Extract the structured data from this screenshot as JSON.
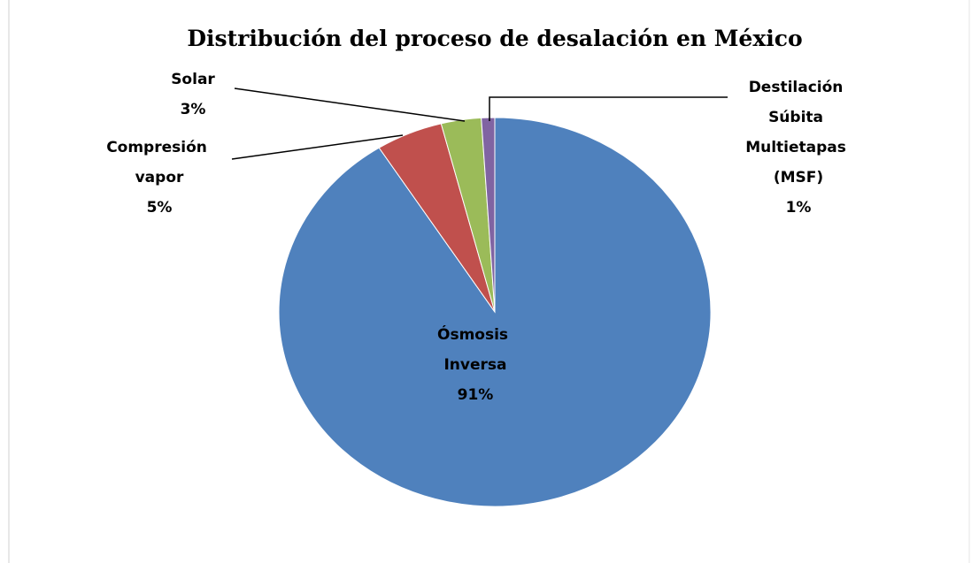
{
  "chart_data": {
    "type": "pie",
    "title": "Distribución del proceso de desalación en México",
    "categories": [
      "Ósmosis Inversa",
      "Compresión vapor",
      "Solar",
      "Destilación Súbita Multietapas (MSF)"
    ],
    "values": [
      91,
      5,
      3,
      1
    ],
    "value_labels": [
      "91%",
      "5%",
      "3%",
      "1%"
    ],
    "colors": [
      "#4f81bd",
      "#c0504d",
      "#9bbb59",
      "#8064a2"
    ]
  }
}
